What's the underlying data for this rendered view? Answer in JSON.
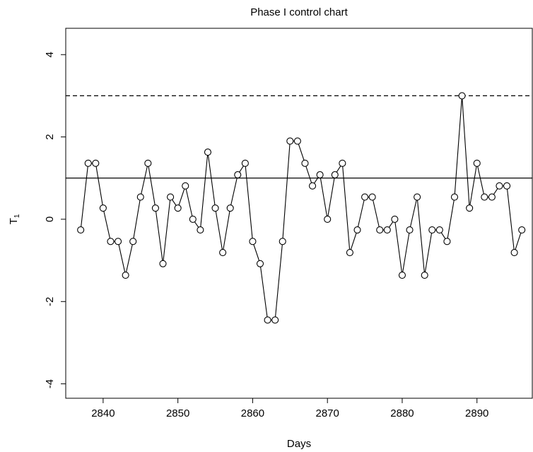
{
  "chart_data": {
    "type": "line",
    "title": "Phase I control chart",
    "x_label": "Days",
    "y_label": {
      "text": "T",
      "subscript": "1"
    },
    "x": [
      2837,
      2838,
      2839,
      2840,
      2841,
      2842,
      2843,
      2844,
      2845,
      2846,
      2847,
      2848,
      2849,
      2850,
      2851,
      2852,
      2853,
      2854,
      2855,
      2856,
      2857,
      2858,
      2859,
      2860,
      2861,
      2862,
      2863,
      2864,
      2865,
      2866,
      2867,
      2868,
      2869,
      2870,
      2871,
      2872,
      2873,
      2874,
      2875,
      2876,
      2877,
      2878,
      2879,
      2880,
      2881,
      2882,
      2883,
      2884,
      2885,
      2886,
      2887,
      2888,
      2889,
      2890,
      2891,
      2892,
      2893,
      2894,
      2895,
      2896
    ],
    "values": [
      -0.26,
      1.36,
      1.36,
      0.27,
      -0.54,
      -0.54,
      -1.36,
      -0.54,
      0.54,
      1.36,
      0.27,
      -1.08,
      0.54,
      0.27,
      0.81,
      0,
      -0.26,
      1.63,
      0.27,
      -0.81,
      0.27,
      1.08,
      1.36,
      -0.54,
      -1.08,
      -2.45,
      -2.45,
      -0.54,
      1.9,
      1.9,
      1.36,
      0.81,
      1.08,
      0,
      1.08,
      1.36,
      -0.81,
      -0.26,
      0.54,
      0.54,
      -0.26,
      -0.26,
      0,
      -1.36,
      -0.26,
      0.54,
      -1.36,
      -0.26,
      -0.26,
      -0.54,
      0.54,
      3.0,
      0.27,
      1.36,
      0.54,
      0.54,
      0.81,
      0.81,
      -0.81,
      -0.26
    ],
    "color": "#000000",
    "marker": "open-circle",
    "hlines": [
      {
        "value": 3,
        "style": "dashed"
      },
      {
        "value": 1,
        "style": "solid"
      }
    ],
    "xlim": [
      2835.0,
      2897.4
    ],
    "ylim": [
      -4.35,
      4.64
    ],
    "xticks": [
      2840,
      2850,
      2860,
      2870,
      2880,
      2890
    ],
    "yticks": [
      -4,
      -2,
      0,
      2,
      4
    ]
  }
}
